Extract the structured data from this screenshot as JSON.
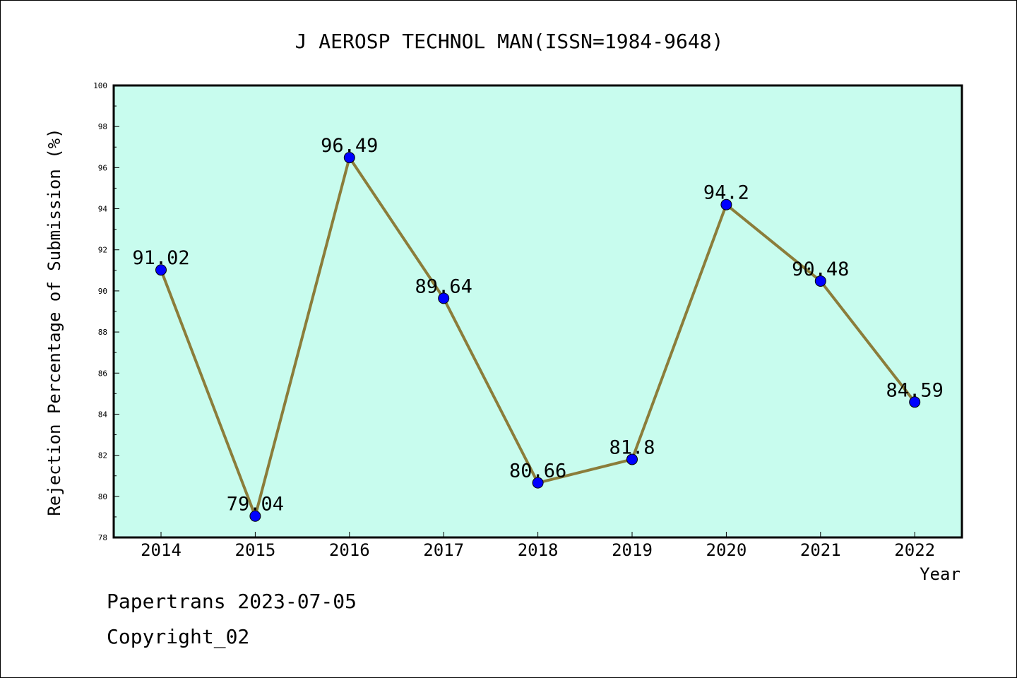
{
  "chart_data": {
    "type": "line",
    "title": "J AEROSP TECHNOL MAN(ISSN=1984-9648)",
    "xlabel": "Year",
    "ylabel": "Rejection Percentage of Submission (%)",
    "categories": [
      "2014",
      "2015",
      "2016",
      "2017",
      "2018",
      "2019",
      "2020",
      "2021",
      "2022"
    ],
    "series": [
      {
        "values": [
          91.02,
          79.04,
          96.49,
          89.64,
          80.66,
          81.8,
          94.2,
          90.48,
          84.59
        ],
        "data_labels": [
          "91.02",
          "79.04",
          "96.49",
          "89.64",
          "80.66",
          "81.8",
          "94.2",
          "90.48",
          "84.59"
        ]
      }
    ],
    "ylim": [
      78,
      100
    ],
    "yticks": [
      "78",
      "80",
      "82",
      "84",
      "86",
      "88",
      "90",
      "92",
      "94",
      "96",
      "98",
      "100"
    ],
    "grid": false,
    "colors": {
      "plot_background": "#c8fcee",
      "line": "#8b7d3a",
      "marker": "#0000ff"
    }
  },
  "footer": {
    "line1": "Papertrans 2023-07-05",
    "line2": "Copyright_02"
  }
}
